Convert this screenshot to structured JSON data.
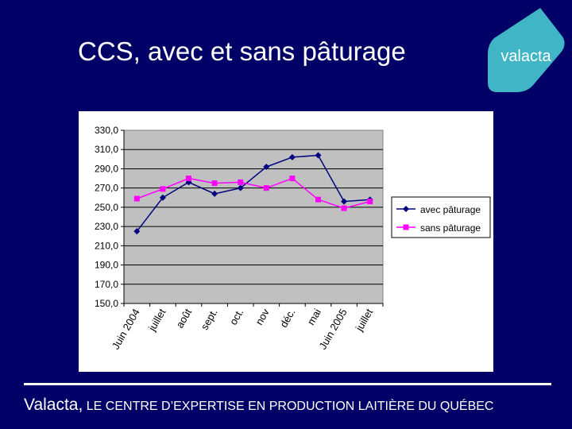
{
  "slide": {
    "title": "CCS, avec et sans pâturage",
    "logo_text": "valacta",
    "footer_brand": "Valacta,",
    "footer_tagline": " LE CENTRE D’EXPERTISE EN PRODUCTION LAITIÈRE DU QUÉBEC"
  },
  "colors": {
    "background": "#000066",
    "logo": "#3fb5c6",
    "plot_area": "#c0c0c0",
    "avec": "#000080",
    "sans": "#ff00ff"
  },
  "chart_data": {
    "type": "line",
    "categories": [
      "Juin 2004",
      "juillet",
      "août",
      "sept.",
      "oct.",
      "nov",
      "déc.",
      "mai",
      "Juin 2005",
      "juillet"
    ],
    "series": [
      {
        "name": "avec pâturage",
        "marker": "diamond",
        "color": "#000080",
        "values": [
          225,
          260,
          276,
          264,
          270,
          292,
          302,
          304,
          256,
          258
        ]
      },
      {
        "name": "sans pâturage",
        "marker": "square",
        "color": "#ff00ff",
        "values": [
          259,
          269,
          280,
          275,
          276,
          270,
          280,
          258,
          249,
          256
        ]
      }
    ],
    "ylim": [
      150,
      330
    ],
    "yticks": [
      "330,0",
      "310,0",
      "290,0",
      "270,0",
      "250,0",
      "230,0",
      "210,0",
      "190,0",
      "170,0",
      "150,0"
    ],
    "grid": true,
    "legend": "right",
    "title": "",
    "xlabel": "",
    "ylabel": ""
  }
}
